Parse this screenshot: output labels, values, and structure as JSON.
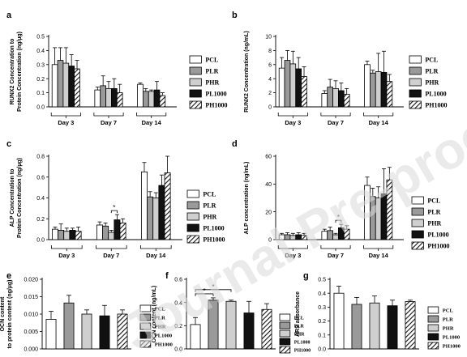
{
  "legend": [
    "PCL",
    "PLR",
    "PHR",
    "PL1000",
    "PH1000"
  ],
  "day_labels": [
    "Day 3",
    "Day 7",
    "Day 14"
  ],
  "watermark": "Journal Pre-proof",
  "chart_data": [
    {
      "panel": "a",
      "type": "bar",
      "ylabel": [
        "RUNX2 Concentration to",
        "Protein Concentration (ng/µg)"
      ],
      "ylim": [
        0,
        0.5
      ],
      "yticks": [
        0.0,
        0.1,
        0.2,
        0.3,
        0.4,
        0.5
      ],
      "tick_labels": [
        "0.0",
        "0.1",
        "0.2",
        "0.3",
        "0.4",
        "0.5"
      ],
      "groups": [
        "Day 3",
        "Day 7",
        "Day 14"
      ],
      "series": [
        "PCL",
        "PLR",
        "PHR",
        "PL1000",
        "PH1000"
      ],
      "values": [
        [
          0.3,
          0.33,
          0.31,
          0.29,
          0.27
        ],
        [
          0.12,
          0.15,
          0.13,
          0.13,
          0.1
        ],
        [
          0.16,
          0.11,
          0.11,
          0.12,
          0.08
        ]
      ],
      "errors": [
        [
          0.12,
          0.09,
          0.11,
          0.08,
          0.06
        ],
        [
          0.02,
          0.07,
          0.05,
          0.07,
          0.06
        ],
        [
          0.01,
          0.02,
          0.01,
          0.06,
          0.02
        ]
      ],
      "annotations": []
    },
    {
      "panel": "b",
      "type": "bar",
      "ylabel": [
        "RUNX2 Concentration (ng/mL)"
      ],
      "ylim": [
        0,
        10
      ],
      "yticks": [
        0,
        2,
        4,
        6,
        8,
        10
      ],
      "tick_labels": [
        "0",
        "2",
        "4",
        "6",
        "8",
        "10"
      ],
      "groups": [
        "Day 3",
        "Day 7",
        "Day 14"
      ],
      "series": [
        "PCL",
        "PLR",
        "PHR",
        "PL1000",
        "PH1000"
      ],
      "values": [
        [
          5.5,
          6.6,
          6.1,
          5.4,
          4.3
        ],
        [
          1.9,
          2.8,
          2.6,
          2.3,
          1.8
        ],
        [
          6.0,
          4.8,
          5.0,
          4.9,
          3.6
        ]
      ],
      "errors": [
        [
          1.5,
          1.4,
          1.8,
          1.6,
          1.4
        ],
        [
          0.4,
          1.1,
          1.1,
          1.1,
          0.8
        ],
        [
          0.5,
          0.4,
          2.6,
          3.0,
          1.0
        ]
      ],
      "annotations": []
    },
    {
      "panel": "c",
      "type": "bar",
      "ylabel": [
        "ALP Concentration to",
        "Protein Concentration (ng/µg)"
      ],
      "ylim": [
        0,
        0.8
      ],
      "yticks": [
        0.0,
        0.2,
        0.4,
        0.6,
        0.8
      ],
      "tick_labels": [
        "0.0",
        "0.2",
        "0.4",
        "0.6",
        "0.8"
      ],
      "groups": [
        "Day 3",
        "Day 7",
        "Day 14"
      ],
      "series": [
        "PCL",
        "PLR",
        "PHR",
        "PL1000",
        "PH1000"
      ],
      "values": [
        [
          0.1,
          0.09,
          0.08,
          0.09,
          0.08
        ],
        [
          0.14,
          0.13,
          0.07,
          0.19,
          0.16
        ],
        [
          0.65,
          0.41,
          0.4,
          0.52,
          0.64
        ]
      ],
      "errors": [
        [
          0.02,
          0.06,
          0.03,
          0.02,
          0.04
        ],
        [
          0.03,
          0.03,
          0.02,
          0.05,
          0.04
        ],
        [
          0.09,
          0.05,
          0.05,
          0.1,
          0.16
        ]
      ],
      "annotations": [
        {
          "text": "*",
          "group": 1,
          "from": 2,
          "to": 3
        }
      ]
    },
    {
      "panel": "d",
      "type": "bar",
      "ylabel": [
        "ALP concentration (ng/mL)"
      ],
      "ylim": [
        0,
        60
      ],
      "yticks": [
        0,
        20,
        40,
        60
      ],
      "tick_labels": [
        "0",
        "20",
        "40",
        "60"
      ],
      "groups": [
        "Day 3",
        "Day 7",
        "Day 14"
      ],
      "series": [
        "PCL",
        "PLR",
        "PHR",
        "PL1000",
        "PH1000"
      ],
      "values": [
        [
          3.5,
          3.5,
          3.0,
          3.5,
          3.0
        ],
        [
          6.0,
          6.5,
          3.5,
          8.5,
          7.5
        ],
        [
          39,
          31,
          30,
          33,
          43
        ]
      ],
      "errors": [
        [
          1.0,
          1.5,
          1.5,
          1.5,
          1.5
        ],
        [
          1.5,
          2.5,
          1.0,
          2.5,
          2.5
        ],
        [
          6.0,
          6.0,
          8.0,
          18.0,
          9.0
        ]
      ],
      "annotations": [
        {
          "text": "*",
          "group": 1,
          "from": 2,
          "to": 3
        }
      ]
    },
    {
      "panel": "e",
      "type": "bar",
      "ylabel": [
        "OCN content",
        "to protein content (ng/µg)"
      ],
      "ylim": [
        0,
        0.02
      ],
      "yticks": [
        0,
        0.005,
        0.01,
        0.015,
        0.02
      ],
      "tick_labels": [
        "0.000",
        "0.005",
        "0.010",
        "0.015",
        "0.020"
      ],
      "series": [
        "PCL",
        "PLR",
        "PHR",
        "PL1000",
        "PH1000"
      ],
      "values": [
        0.0085,
        0.0132,
        0.01,
        0.0095,
        0.01
      ],
      "errors": [
        0.0023,
        0.0022,
        0.0012,
        0.003,
        0.0012
      ],
      "annotations": []
    },
    {
      "panel": "f",
      "type": "bar",
      "ylabel": [
        "OCN content (ng/mL)"
      ],
      "ylim": [
        0,
        0.6
      ],
      "yticks": [
        0,
        0.2,
        0.4,
        0.6
      ],
      "tick_labels": [
        "0.0",
        "0.2",
        "0.4",
        "0.6"
      ],
      "series": [
        "PCL",
        "PLR",
        "PHR",
        "PL1000",
        "PH1000"
      ],
      "values": [
        0.21,
        0.42,
        0.41,
        0.31,
        0.34
      ],
      "errors": [
        0.06,
        0.02,
        0.01,
        0.1,
        0.05
      ],
      "annotations": [
        {
          "text": "*",
          "from": 0,
          "to": 1
        },
        {
          "text": "*",
          "from": 0,
          "to": 2
        }
      ]
    },
    {
      "panel": "g",
      "type": "bar",
      "ylabel": [
        "ARS absorbance"
      ],
      "ylim": [
        0,
        0.5
      ],
      "yticks": [
        0,
        0.1,
        0.2,
        0.3,
        0.4,
        0.5
      ],
      "tick_labels": [
        "0.0",
        "0.1",
        "0.2",
        "0.3",
        "0.4",
        "0.5"
      ],
      "series": [
        "PCL",
        "PLR",
        "PHR",
        "PL1000",
        "PH1000"
      ],
      "values": [
        0.4,
        0.32,
        0.33,
        0.31,
        0.34
      ],
      "errors": [
        0.05,
        0.05,
        0.05,
        0.04,
        0.01
      ],
      "annotations": []
    }
  ]
}
